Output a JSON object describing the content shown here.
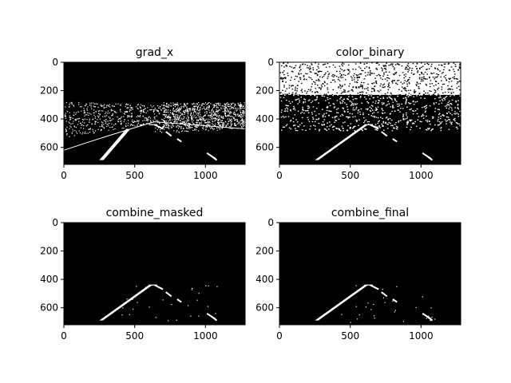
{
  "chart_data": [
    {
      "type": "heatmap",
      "title": "grad_x",
      "image_shape": [
        720,
        1280
      ],
      "colormap": "binary black/white",
      "xticks": [
        0,
        500,
        1000
      ],
      "yticks": [
        0,
        200,
        400,
        600
      ],
      "xlim": [
        0,
        1280
      ],
      "ylim": [
        720,
        0
      ]
    },
    {
      "type": "heatmap",
      "title": "color_binary",
      "image_shape": [
        720,
        1280
      ],
      "colormap": "binary black/white",
      "xticks": [
        0,
        500,
        1000
      ],
      "yticks": [
        0,
        200,
        400,
        600
      ],
      "xlim": [
        0,
        1280
      ],
      "ylim": [
        720,
        0
      ]
    },
    {
      "type": "heatmap",
      "title": "combine_masked",
      "image_shape": [
        720,
        1280
      ],
      "colormap": "binary black/white",
      "xticks": [
        0,
        500,
        1000
      ],
      "yticks": [
        0,
        200,
        400,
        600
      ],
      "xlim": [
        0,
        1280
      ],
      "ylim": [
        720,
        0
      ]
    },
    {
      "type": "heatmap",
      "title": "combine_final",
      "image_shape": [
        720,
        1280
      ],
      "colormap": "binary black/white",
      "xticks": [
        0,
        500,
        1000
      ],
      "yticks": [
        0,
        200,
        400,
        600
      ],
      "xlim": [
        0,
        1280
      ],
      "ylim": [
        720,
        0
      ]
    }
  ]
}
